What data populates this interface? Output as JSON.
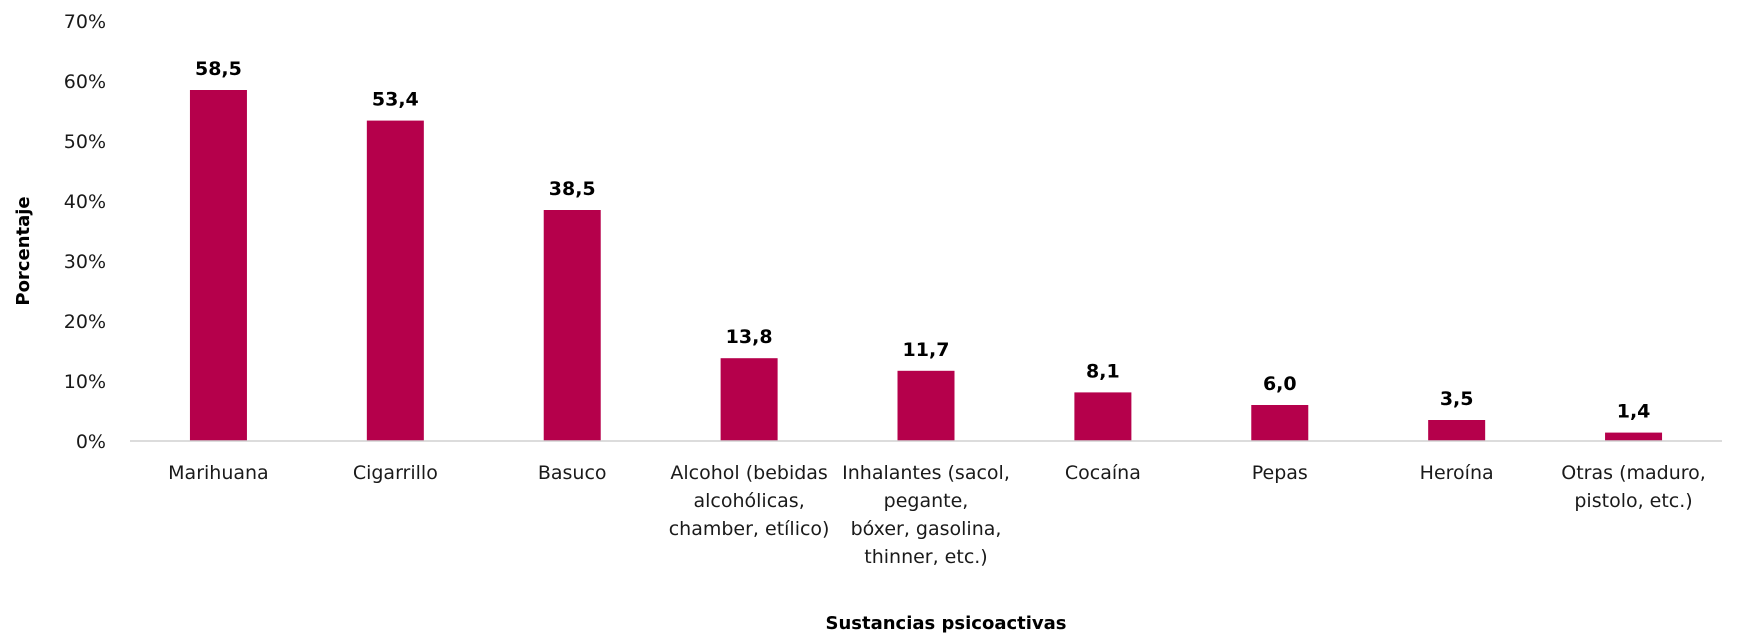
{
  "chart_data": {
    "type": "bar",
    "categories": [
      [
        "Marihuana"
      ],
      [
        "Cigarrillo"
      ],
      [
        "Basuco"
      ],
      [
        "Alcohol (bebidas",
        "alcohólicas,",
        "chamber, etílico)"
      ],
      [
        "Inhalantes (sacol,",
        "pegante,",
        "bóxer, gasolina,",
        "thinner, etc.)"
      ],
      [
        "Cocaína"
      ],
      [
        "Pepas"
      ],
      [
        "Heroína"
      ],
      [
        "Otras (maduro,",
        "pistolo, etc.)"
      ]
    ],
    "values": [
      58.5,
      53.4,
      38.5,
      13.8,
      11.7,
      8.1,
      6.0,
      3.5,
      1.4
    ],
    "data_labels": [
      "58,5",
      "53,4",
      "38,5",
      "13,8",
      "11,7",
      "8,1",
      "6,0",
      "3,5",
      "1,4"
    ],
    "yticks": [
      0,
      10,
      20,
      30,
      40,
      50,
      60,
      70
    ],
    "ytick_labels": [
      "0%",
      "10%",
      "20%",
      "30%",
      "40%",
      "50%",
      "60%",
      "70%"
    ],
    "ylim": [
      0,
      70
    ],
    "xlabel": "Sustancias psicoactivas",
    "ylabel": "Porcentaje",
    "bar_color": "#b5004b",
    "grid": false,
    "legend": "none"
  }
}
